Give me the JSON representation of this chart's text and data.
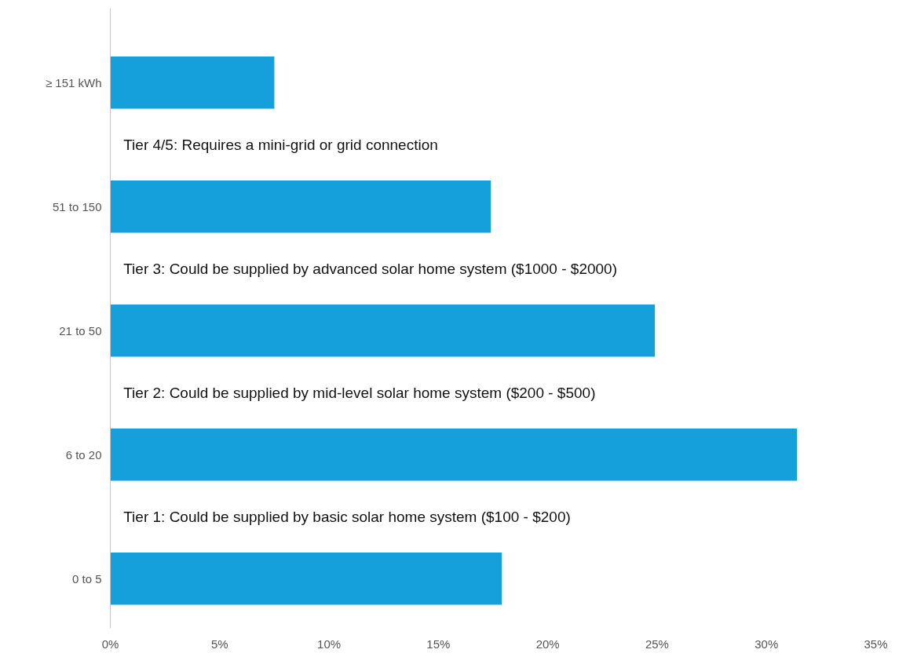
{
  "chart_data": {
    "type": "bar",
    "orientation": "horizontal",
    "categories": [
      "≥ 151 kWh",
      "51 to 150",
      "21 to 50",
      "6 to 20",
      "0 to 5"
    ],
    "values": [
      7.5,
      17.4,
      24.9,
      31.4,
      17.9
    ],
    "color": "#16a0db",
    "xlim": [
      0,
      35
    ],
    "xticks": [
      {
        "value": 0,
        "label": "0%"
      },
      {
        "value": 5,
        "label": "5%"
      },
      {
        "value": 10,
        "label": "10%"
      },
      {
        "value": 15,
        "label": "15%"
      },
      {
        "value": 20,
        "label": "20%"
      },
      {
        "value": 25,
        "label": "25%"
      },
      {
        "value": 30,
        "label": "30%"
      },
      {
        "value": 35,
        "label": "35%"
      }
    ],
    "annotations": [
      "Tier 4/5: Requires a mini-grid or grid connection",
      "Tier 3: Could be supplied by advanced solar home system ($1000 - $2000)",
      "Tier 2: Could be supplied by mid-level solar home system ($200 - $500)",
      "Tier 1: Could be supplied by basic solar home system ($100 - $200)"
    ],
    "grid": false
  }
}
